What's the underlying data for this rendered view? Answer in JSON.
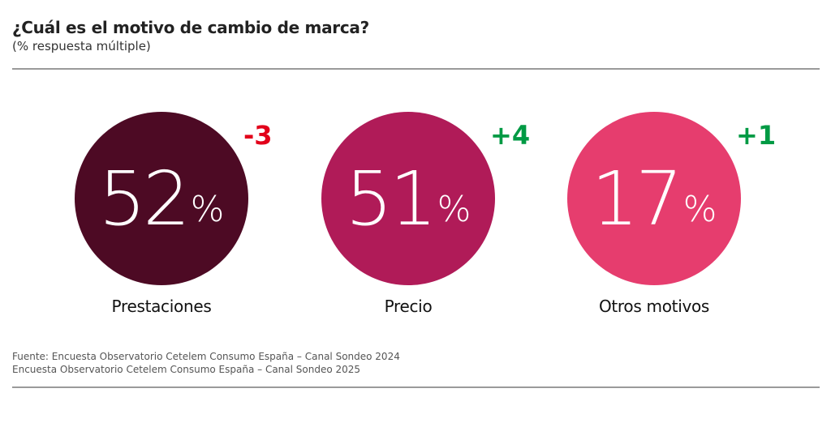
{
  "header": {
    "title": "¿Cuál es el motivo de cambio de marca?",
    "subtitle": "(% respuesta múltiple)"
  },
  "chart_data": {
    "type": "bubble-kpi",
    "title": "¿Cuál es el motivo de cambio de marca?",
    "subtitle": "(% respuesta múltiple)",
    "unit": "%",
    "items": [
      {
        "label": "Prestaciones",
        "value": "52",
        "change": "-3",
        "color": "#4d0a24",
        "change_color": "#e2001a"
      },
      {
        "label": "Precio",
        "value": "51",
        "change": "+4",
        "color": "#b01b58",
        "change_color": "#009a44"
      },
      {
        "label": "Otros motivos",
        "value": "17",
        "change": "+1",
        "color": "#e63d6e",
        "change_color": "#009a44"
      }
    ]
  },
  "source": {
    "line1": "Fuente: Encuesta Observatorio Cetelem Consumo España – Canal Sondeo 2024",
    "line2": "Encuesta Observatorio Cetelem Consumo España – Canal Sondeo 2025"
  }
}
